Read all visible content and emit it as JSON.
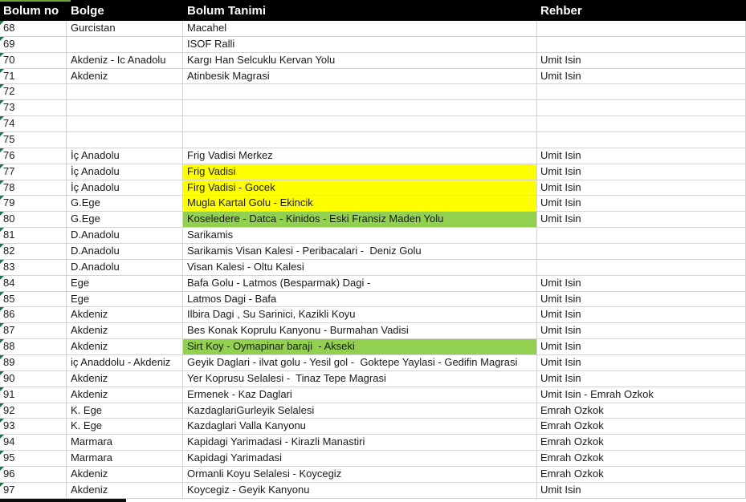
{
  "table": {
    "columns": [
      "Bolum no",
      "Bolge",
      "Bolum Tanimi",
      "Rehber"
    ],
    "rows": [
      {
        "no": "68",
        "bolge": "Gurcistan",
        "tanim": "Macahel",
        "rehber": "",
        "highlight": null
      },
      {
        "no": "69",
        "bolge": "",
        "tanim": "ISOF Ralli",
        "rehber": "",
        "highlight": null
      },
      {
        "no": "70",
        "bolge": "Akdeniz - Ic Anadolu",
        "tanim": "Kargı Han Selcuklu Kervan Yolu",
        "rehber": "Umit Isin",
        "highlight": null
      },
      {
        "no": "71",
        "bolge": "Akdeniz",
        "tanim": "Atinbesik Magrasi",
        "rehber": "Umit Isin",
        "highlight": null
      },
      {
        "no": "72",
        "bolge": "",
        "tanim": "",
        "rehber": "",
        "highlight": null
      },
      {
        "no": "73",
        "bolge": "",
        "tanim": "",
        "rehber": "",
        "highlight": null
      },
      {
        "no": "74",
        "bolge": "",
        "tanim": "",
        "rehber": "",
        "highlight": null
      },
      {
        "no": "75",
        "bolge": "",
        "tanim": "",
        "rehber": "",
        "highlight": null
      },
      {
        "no": "76",
        "bolge": "İç Anadolu",
        "tanim": "Frig Vadisi Merkez",
        "rehber": "Umit Isin",
        "highlight": null
      },
      {
        "no": "77",
        "bolge": "İç Anadolu",
        "tanim": "Frig Vadisi",
        "rehber": "Umit Isin",
        "highlight": "yellow"
      },
      {
        "no": "78",
        "bolge": "İç Anadolu",
        "tanim": "Firg Vadisi - Gocek",
        "rehber": "Umit Isin",
        "highlight": "yellow"
      },
      {
        "no": "79",
        "bolge": "G.Ege",
        "tanim": "Mugla Kartal Golu - Ekincik",
        "rehber": "Umit Isin",
        "highlight": "yellow"
      },
      {
        "no": "80",
        "bolge": "G.Ege",
        "tanim": "Koseledere - Datca - Kinidos - Eski Fransiz Maden Yolu",
        "rehber": "Umit Isin",
        "highlight": "green"
      },
      {
        "no": "81",
        "bolge": "D.Anadolu",
        "tanim": "Sarikamis",
        "rehber": "",
        "highlight": null
      },
      {
        "no": "82",
        "bolge": "D.Anadolu",
        "tanim": "Sarikamis Visan Kalesi - Peribacalari -  Deniz Golu",
        "rehber": "",
        "highlight": null
      },
      {
        "no": "83",
        "bolge": "D.Anadolu",
        "tanim": "Visan Kalesi - Oltu Kalesi",
        "rehber": "",
        "highlight": null
      },
      {
        "no": "84",
        "bolge": "Ege",
        "tanim": "Bafa Golu - Latmos (Besparmak) Dagi -",
        "rehber": "Umit Isin",
        "highlight": null
      },
      {
        "no": "85",
        "bolge": "Ege",
        "tanim": "Latmos Dagi - Bafa",
        "rehber": "Umit Isin",
        "highlight": null
      },
      {
        "no": "86",
        "bolge": "Akdeniz",
        "tanim": "Ilbira Dagi , Su Sarinici, Kazikli Koyu",
        "rehber": "Umit Isin",
        "highlight": null
      },
      {
        "no": "87",
        "bolge": "Akdeniz",
        "tanim": "Bes Konak Koprulu Kanyonu - Burmahan Vadisi",
        "rehber": "Umit Isin",
        "highlight": null
      },
      {
        "no": "88",
        "bolge": "Akdeniz",
        "tanim": "Sirt Koy - Oymapinar baraji  - Akseki",
        "rehber": "Umit Isin",
        "highlight": "green"
      },
      {
        "no": "89",
        "bolge": "iç Anaddolu - Akdeniz",
        "tanim": "Geyik Daglari - ilvat golu - Yesil gol -  Goktepe Yaylasi - Gedifin Magrasi",
        "rehber": "Umit Isin",
        "highlight": null
      },
      {
        "no": "90",
        "bolge": "Akdeniz",
        "tanim": "Yer Koprusu Selalesi -  Tinaz Tepe Magrasi",
        "rehber": "Umit Isin",
        "highlight": null
      },
      {
        "no": "91",
        "bolge": "Akdeniz",
        "tanim": "Ermenek - Kaz Daglari",
        "rehber": "Umit Isin - Emrah Ozkok",
        "highlight": null
      },
      {
        "no": "92",
        "bolge": "K. Ege",
        "tanim": "KazdaglariGurleyik Selalesi",
        "rehber": "Emrah Ozkok",
        "highlight": null
      },
      {
        "no": "93",
        "bolge": "K. Ege",
        "tanim": "Kazdaglari Valla Kanyonu",
        "rehber": "Emrah Ozkok",
        "highlight": null
      },
      {
        "no": "94",
        "bolge": "Marmara",
        "tanim": "Kapidagi Yarimadasi - Kirazli Manastiri",
        "rehber": "Emrah Ozkok",
        "highlight": null
      },
      {
        "no": "95",
        "bolge": "Marmara",
        "tanim": "Kapidagi Yarimadasi",
        "rehber": "Emrah Ozkok",
        "highlight": null
      },
      {
        "no": "96",
        "bolge": "Akdeniz",
        "tanim": "Ormanli Koyu Selalesi - Koycegiz",
        "rehber": "Emrah Ozkok",
        "highlight": null
      },
      {
        "no": "97",
        "bolge": "Akdeniz",
        "tanim": "Koycegiz - Geyik Kanyonu",
        "rehber": "Umit Isin",
        "highlight": null
      }
    ]
  },
  "colors": {
    "header_bg": "#000000",
    "header_text": "#ffffff",
    "gridline": "#d4d4d4",
    "highlight_yellow": "#ffff00",
    "highlight_green": "#92d050",
    "error_indicator_green": "#1f7244",
    "top_sliver_green": "#6fa33f",
    "bottom_sliver_black": "#0d0d0d"
  }
}
